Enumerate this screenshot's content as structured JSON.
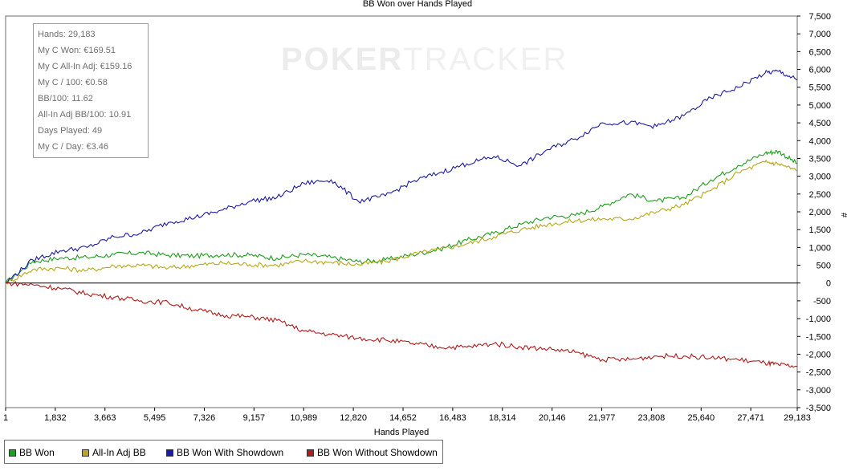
{
  "chart_data": {
    "type": "line",
    "title": "BB Won over Hands Played",
    "xlabel": "Hands Played",
    "ylabel": "#",
    "xlim": [
      1,
      29183
    ],
    "ylim": [
      -3500,
      7500
    ],
    "x_ticks": [
      "1",
      "1,832",
      "3,663",
      "5,495",
      "7,326",
      "9,157",
      "10,989",
      "12,820",
      "14,652",
      "16,483",
      "18,314",
      "20,146",
      "21,977",
      "23,808",
      "25,640",
      "27,471",
      "29,183"
    ],
    "y_ticks": [
      "7,500",
      "7,000",
      "6,500",
      "6,000",
      "5,500",
      "5,000",
      "4,500",
      "4,000",
      "3,500",
      "3,000",
      "2,500",
      "2,000",
      "1,500",
      "1,000",
      "500",
      "0",
      "-500",
      "-1,000",
      "-1,500",
      "-2,000",
      "-2,500",
      "-3,000",
      "-3,500"
    ],
    "grid": false,
    "legend_position": "bottom-left",
    "x": [
      1,
      1000,
      2000,
      3000,
      4000,
      5000,
      6000,
      7000,
      8000,
      9000,
      10000,
      11000,
      12000,
      13000,
      14000,
      15000,
      16000,
      17000,
      18000,
      19000,
      20000,
      21000,
      22000,
      23000,
      24000,
      25000,
      26000,
      27000,
      28000,
      28500,
      29183
    ],
    "series": [
      {
        "name": "BB Won",
        "color": "#1f9e1f",
        "values": [
          0,
          600,
          700,
          720,
          800,
          850,
          780,
          760,
          800,
          780,
          700,
          800,
          720,
          600,
          650,
          800,
          950,
          1200,
          1400,
          1650,
          1850,
          1900,
          2150,
          2500,
          2300,
          2400,
          2900,
          3300,
          3650,
          3700,
          3350
        ]
      },
      {
        "name": "All-In Adj BB",
        "color": "#b5a81a",
        "values": [
          0,
          380,
          420,
          350,
          480,
          500,
          420,
          500,
          560,
          520,
          500,
          620,
          580,
          520,
          600,
          800,
          950,
          1100,
          1300,
          1500,
          1650,
          1750,
          1800,
          1800,
          2000,
          2200,
          2600,
          3100,
          3400,
          3350,
          3150
        ]
      },
      {
        "name": "BB Won With Showdown",
        "color": "#1c1ca3",
        "values": [
          0,
          650,
          900,
          1000,
          1300,
          1400,
          1700,
          1850,
          2050,
          2300,
          2400,
          2800,
          2900,
          2300,
          2450,
          2850,
          3100,
          3350,
          3550,
          3300,
          3750,
          4050,
          4500,
          4500,
          4400,
          4700,
          5200,
          5500,
          5900,
          5950,
          5700
        ]
      },
      {
        "name": "BB Won Without Showdown",
        "color": "#b01b1b",
        "values": [
          0,
          -50,
          -150,
          -300,
          -400,
          -500,
          -550,
          -750,
          -900,
          -950,
          -1050,
          -1350,
          -1450,
          -1550,
          -1600,
          -1700,
          -1800,
          -1800,
          -1700,
          -1800,
          -1850,
          -1950,
          -2150,
          -2150,
          -2050,
          -2050,
          -2100,
          -2150,
          -2250,
          -2300,
          -2350
        ]
      }
    ]
  },
  "stats": {
    "hands": "Hands: 29,183",
    "won": "My C Won: €169.51",
    "allin_adj": "My C All-In Adj: €159.16",
    "per100": "My C / 100: €0.58",
    "bb100": "BB/100: 11.62",
    "allin_bb100": "All-In Adj BB/100: 10.91",
    "days": "Days Played: 49",
    "per_day": "My C / Day: €3.46"
  },
  "watermark": {
    "part1": "POKER",
    "part2": "TRACKER"
  }
}
